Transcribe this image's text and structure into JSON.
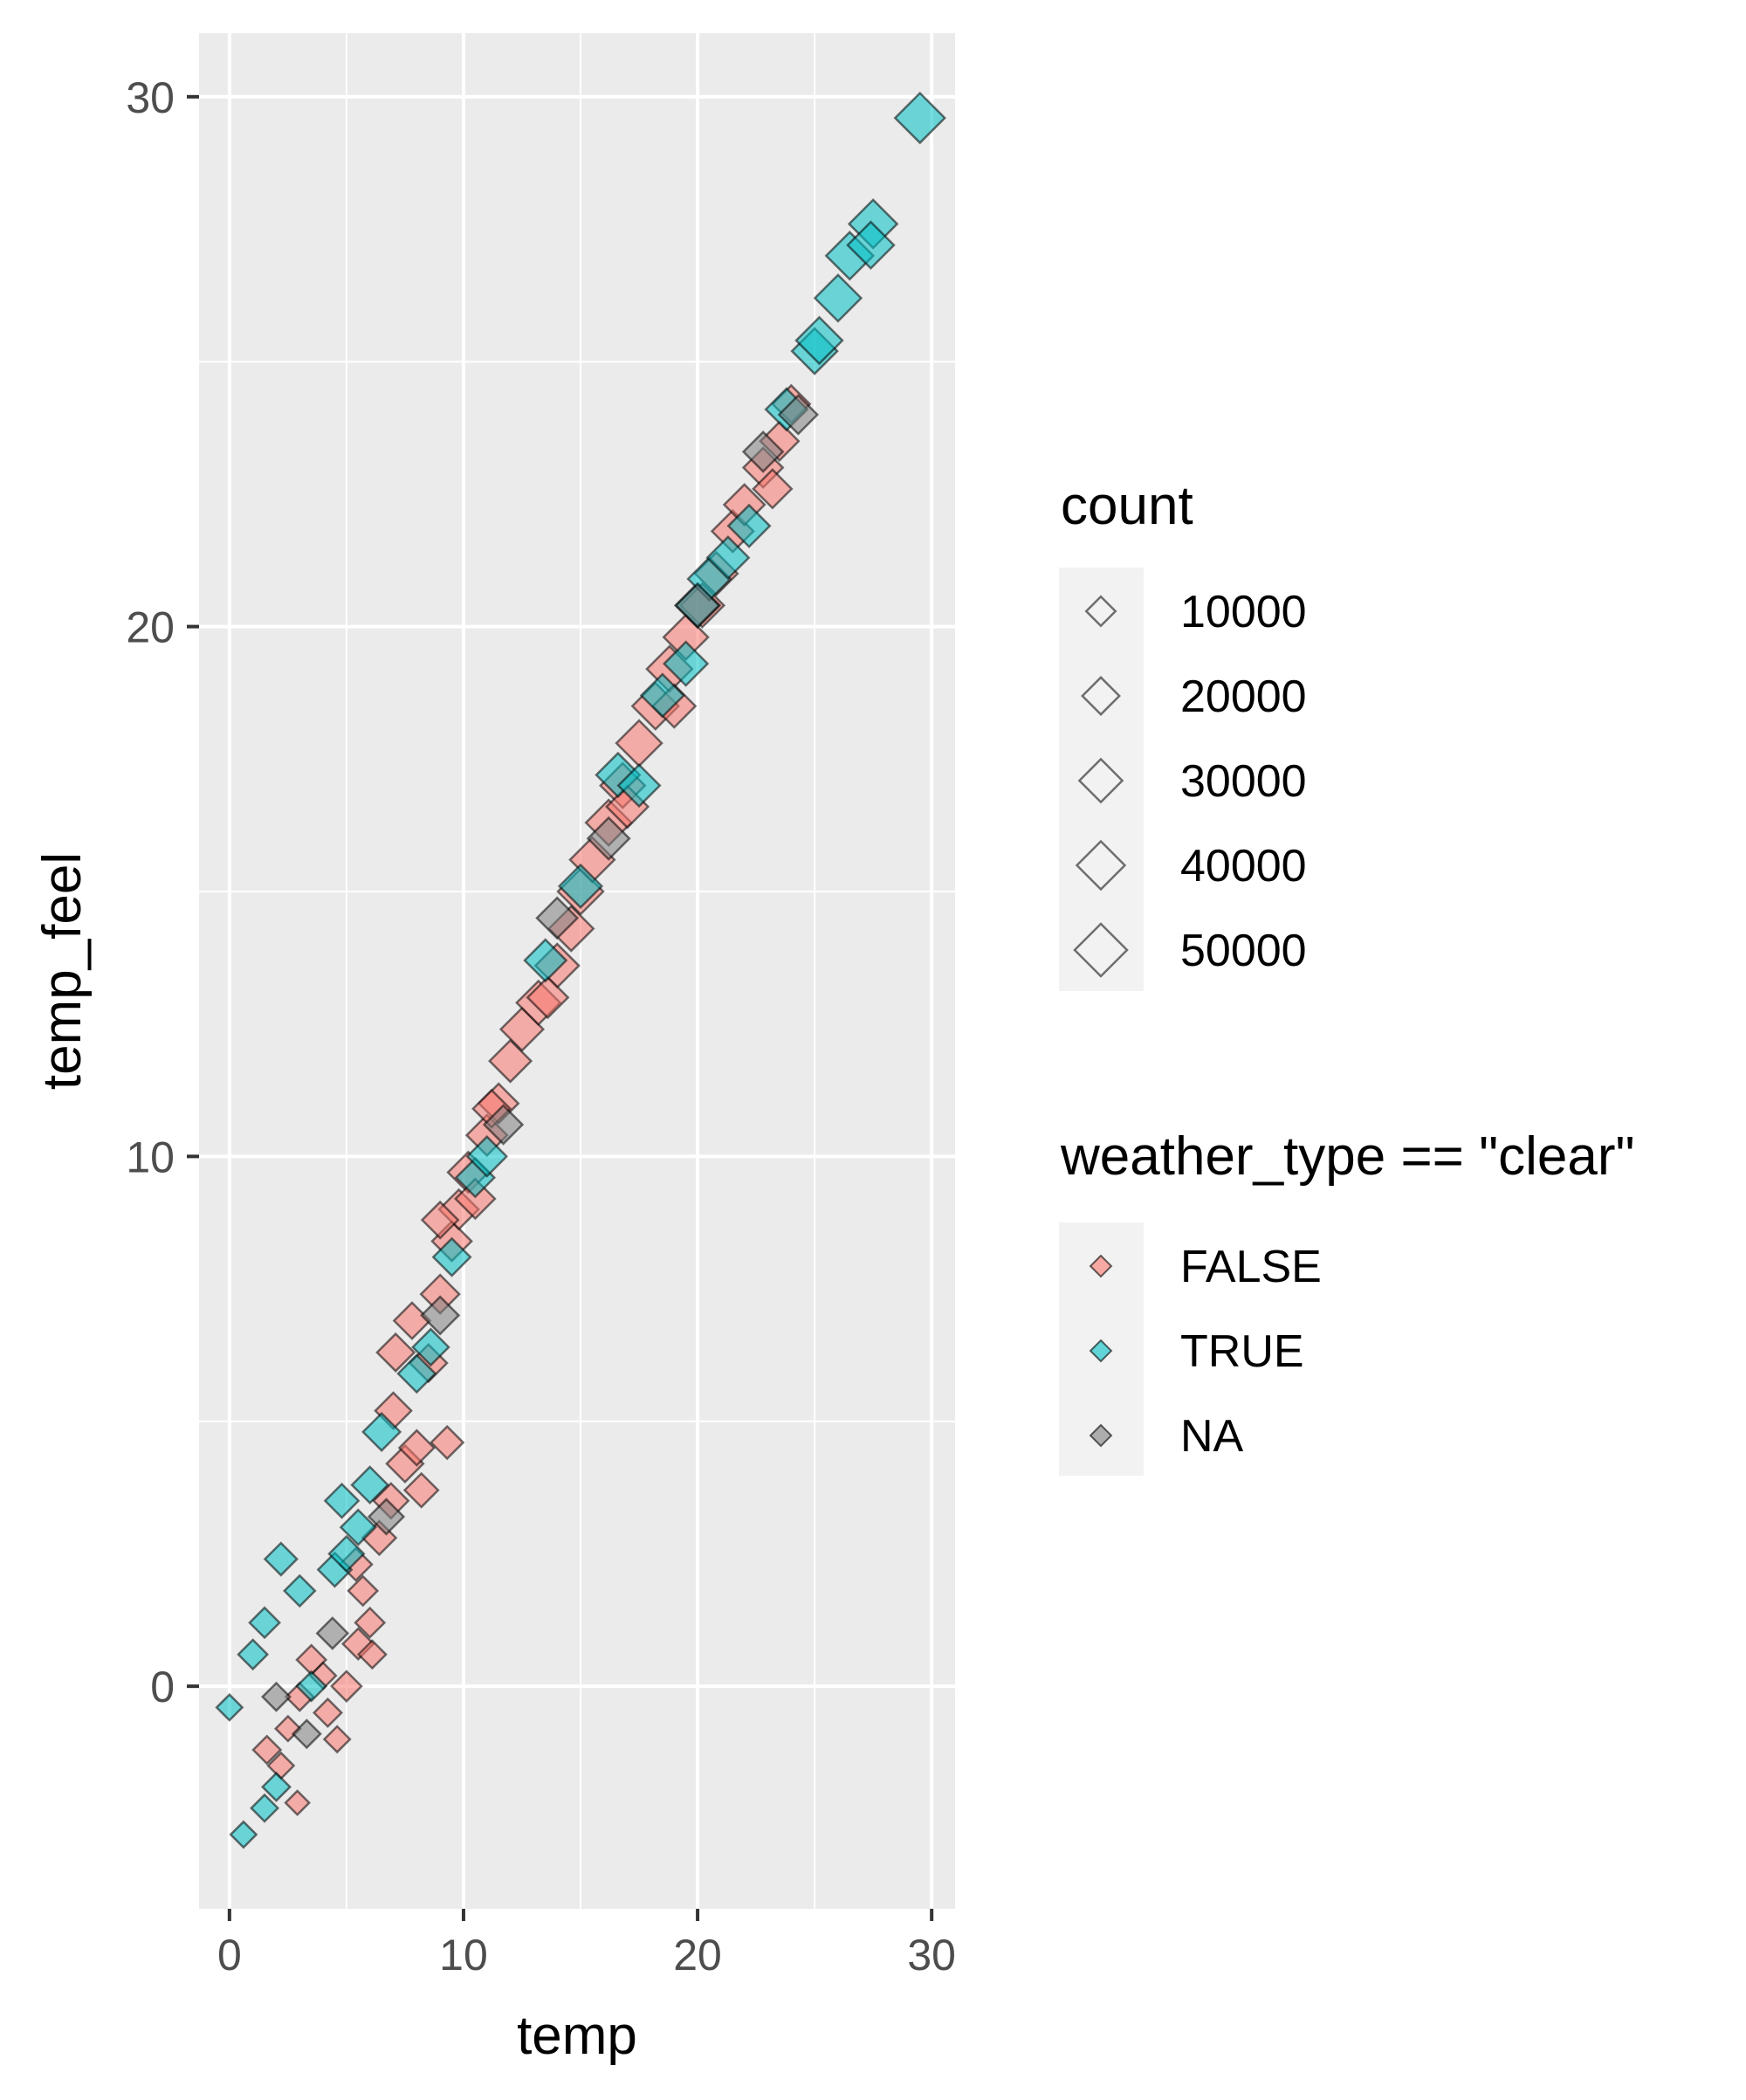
{
  "chart_data": {
    "type": "scatter",
    "title": "",
    "xlabel": "temp",
    "ylabel": "temp_feel",
    "xlim": [
      -1.3,
      31.0
    ],
    "ylim": [
      -4.2,
      31.2
    ],
    "x_ticks": [
      "0",
      "10",
      "20",
      "30"
    ],
    "y_ticks": [
      "0",
      "10",
      "20",
      "30"
    ],
    "grid": true,
    "marker": "diamond",
    "size_legend": {
      "title": "count",
      "entries": [
        {
          "label": "10000",
          "value": 10000
        },
        {
          "label": "20000",
          "value": 20000
        },
        {
          "label": "30000",
          "value": 30000
        },
        {
          "label": "40000",
          "value": 40000
        },
        {
          "label": "50000",
          "value": 50000
        }
      ]
    },
    "color_legend": {
      "title": "weather_type == \"clear\"",
      "entries": [
        {
          "label": "FALSE",
          "color": "#F8766D"
        },
        {
          "label": "TRUE",
          "color": "#00BFC4"
        },
        {
          "label": "NA",
          "color": "#7F7F7F"
        }
      ]
    },
    "legend_position": "right",
    "series": [
      {
        "name": "FALSE",
        "color": "#F8766D",
        "points": [
          [
            1.6,
            -1.2,
            12000
          ],
          [
            2.2,
            -1.5,
            10000
          ],
          [
            2.9,
            -2.2,
            8000
          ],
          [
            2.5,
            -0.8,
            9000
          ],
          [
            3.5,
            0.5,
            14000
          ],
          [
            4.2,
            -0.5,
            12000
          ],
          [
            4.6,
            -1.0,
            10000
          ],
          [
            5.0,
            0.0,
            15000
          ],
          [
            5.5,
            0.8,
            16000
          ],
          [
            6.0,
            1.2,
            14000
          ],
          [
            6.1,
            0.6,
            12000
          ],
          [
            5.4,
            2.3,
            18000
          ],
          [
            6.4,
            2.8,
            20000
          ],
          [
            6.9,
            3.5,
            22000
          ],
          [
            7.5,
            4.2,
            25000
          ],
          [
            7.0,
            5.2,
            24000
          ],
          [
            8.0,
            4.5,
            22000
          ],
          [
            8.2,
            3.7,
            20000
          ],
          [
            9.3,
            4.6,
            18000
          ],
          [
            7.1,
            6.3,
            26000
          ],
          [
            7.8,
            6.9,
            24000
          ],
          [
            8.5,
            6.1,
            26000
          ],
          [
            9.0,
            7.4,
            28000
          ],
          [
            9.5,
            8.4,
            30000
          ],
          [
            9.8,
            9.0,
            30000
          ],
          [
            10.2,
            9.7,
            32000
          ],
          [
            10.5,
            9.2,
            30000
          ],
          [
            11.0,
            10.4,
            32000
          ],
          [
            11.5,
            11.0,
            30000
          ],
          [
            12.0,
            11.8,
            34000
          ],
          [
            12.5,
            12.4,
            36000
          ],
          [
            13.2,
            12.9,
            38000
          ],
          [
            14.0,
            13.6,
            38000
          ],
          [
            14.6,
            14.3,
            40000
          ],
          [
            15.0,
            15.0,
            42000
          ],
          [
            15.5,
            15.6,
            40000
          ],
          [
            16.2,
            16.3,
            42000
          ],
          [
            16.8,
            17.0,
            40000
          ],
          [
            17.5,
            17.8,
            42000
          ],
          [
            18.2,
            18.5,
            44000
          ],
          [
            18.8,
            19.2,
            42000
          ],
          [
            19.5,
            19.8,
            40000
          ],
          [
            20.2,
            20.4,
            38000
          ],
          [
            20.8,
            21.0,
            36000
          ],
          [
            21.5,
            21.8,
            34000
          ],
          [
            22.0,
            22.3,
            32000
          ],
          [
            22.8,
            23.0,
            30000
          ],
          [
            23.5,
            23.5,
            28000
          ],
          [
            24.0,
            24.2,
            26000
          ],
          [
            23.2,
            22.6,
            28000
          ],
          [
            19.0,
            18.5,
            36000
          ],
          [
            17.0,
            16.6,
            34000
          ],
          [
            13.6,
            13.0,
            32000
          ],
          [
            11.2,
            10.9,
            26000
          ],
          [
            9.0,
            8.8,
            24000
          ],
          [
            3.0,
            -0.2,
            12000
          ],
          [
            4.0,
            0.2,
            10000
          ],
          [
            5.7,
            1.8,
            14000
          ]
        ]
      },
      {
        "name": "TRUE",
        "color": "#00BFC4",
        "points": [
          [
            0.0,
            -0.4,
            10000
          ],
          [
            0.6,
            -2.8,
            10000
          ],
          [
            1.5,
            -2.3,
            11000
          ],
          [
            2.0,
            -1.9,
            12000
          ],
          [
            1.0,
            0.6,
            14000
          ],
          [
            1.5,
            1.2,
            15000
          ],
          [
            2.2,
            2.4,
            18000
          ],
          [
            3.0,
            1.8,
            16000
          ],
          [
            3.5,
            0.0,
            14000
          ],
          [
            4.5,
            2.2,
            20000
          ],
          [
            5.0,
            2.5,
            22000
          ],
          [
            5.5,
            3.0,
            22000
          ],
          [
            4.8,
            3.5,
            20000
          ],
          [
            6.0,
            3.8,
            24000
          ],
          [
            6.5,
            4.8,
            26000
          ],
          [
            8.0,
            5.9,
            26000
          ],
          [
            8.6,
            6.4,
            24000
          ],
          [
            9.5,
            8.1,
            26000
          ],
          [
            10.5,
            9.6,
            28000
          ],
          [
            11.0,
            10.0,
            30000
          ],
          [
            13.5,
            13.7,
            34000
          ],
          [
            15.0,
            15.1,
            36000
          ],
          [
            16.6,
            17.2,
            38000
          ],
          [
            17.5,
            17.0,
            34000
          ],
          [
            18.5,
            18.7,
            36000
          ],
          [
            19.5,
            19.3,
            38000
          ],
          [
            20.0,
            20.4,
            40000
          ],
          [
            20.5,
            20.9,
            36000
          ],
          [
            21.3,
            21.3,
            34000
          ],
          [
            22.2,
            21.9,
            34000
          ],
          [
            23.8,
            24.1,
            34000
          ],
          [
            25.0,
            25.2,
            42000
          ],
          [
            25.2,
            25.4,
            44000
          ],
          [
            26.0,
            26.2,
            44000
          ],
          [
            26.5,
            27.0,
            46000
          ],
          [
            27.5,
            27.6,
            48000
          ],
          [
            27.4,
            27.2,
            44000
          ],
          [
            29.5,
            29.6,
            52000
          ]
        ]
      },
      {
        "name": "NA",
        "color": "#7F7F7F",
        "points": [
          [
            2.0,
            -0.2,
            12000
          ],
          [
            3.3,
            -0.9,
            12000
          ],
          [
            4.4,
            1.0,
            16000
          ],
          [
            6.7,
            3.2,
            22000
          ],
          [
            9.0,
            7.0,
            26000
          ],
          [
            11.7,
            10.6,
            28000
          ],
          [
            14.0,
            14.5,
            32000
          ],
          [
            16.2,
            16.0,
            34000
          ],
          [
            20.0,
            20.4,
            36000
          ],
          [
            22.8,
            23.3,
            30000
          ],
          [
            24.3,
            24.0,
            28000
          ]
        ]
      }
    ]
  }
}
